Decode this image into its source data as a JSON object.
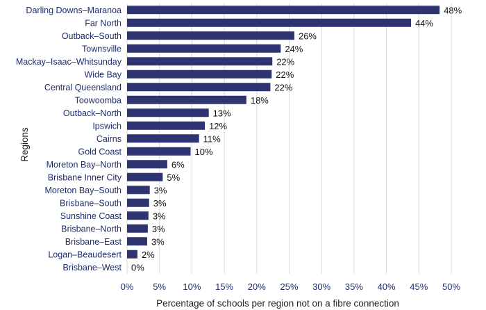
{
  "chart_data": {
    "type": "bar",
    "orientation": "horizontal",
    "categories": [
      "Darling Downs–Maranoa",
      "Far North",
      "Outback–South",
      "Townsville",
      "Mackay–Isaac–Whitsunday",
      "Wide Bay",
      "Central Queensland",
      "Toowoomba",
      "Outback–North",
      "Ipswich",
      "Cairns",
      "Gold Coast",
      "Moreton Bay–North",
      "Brisbane Inner City",
      "Moreton Bay–South",
      "Brisbane–South",
      "Sunshine Coast",
      "Brisbane–North",
      "Brisbane–East",
      "Logan–Beaudesert",
      "Brisbane–West"
    ],
    "values": [
      48.2,
      43.8,
      25.8,
      23.7,
      22.4,
      22.3,
      22.1,
      18.4,
      12.6,
      12.0,
      11.1,
      9.8,
      6.2,
      5.5,
      3.5,
      3.4,
      3.3,
      3.2,
      3.1,
      1.6,
      0.0
    ],
    "data_labels": [
      "48%",
      "44%",
      "26%",
      "24%",
      "22%",
      "22%",
      "22%",
      "18%",
      "13%",
      "12%",
      "11%",
      "10%",
      "6%",
      "5%",
      "3%",
      "3%",
      "3%",
      "3%",
      "3%",
      "2%",
      "0%"
    ],
    "xlabel": "Percentage of schools per region not on a fibre connection",
    "ylabel": "Regions",
    "xlim": [
      0,
      50
    ],
    "x_ticks": [
      0,
      5,
      10,
      15,
      20,
      25,
      30,
      35,
      40,
      45,
      50
    ],
    "x_tick_labels": [
      "0%",
      "5%",
      "10%",
      "15%",
      "20%",
      "25%",
      "30%",
      "35%",
      "40%",
      "45%",
      "50%"
    ],
    "grid": true,
    "bar_color": "#2e3470"
  }
}
